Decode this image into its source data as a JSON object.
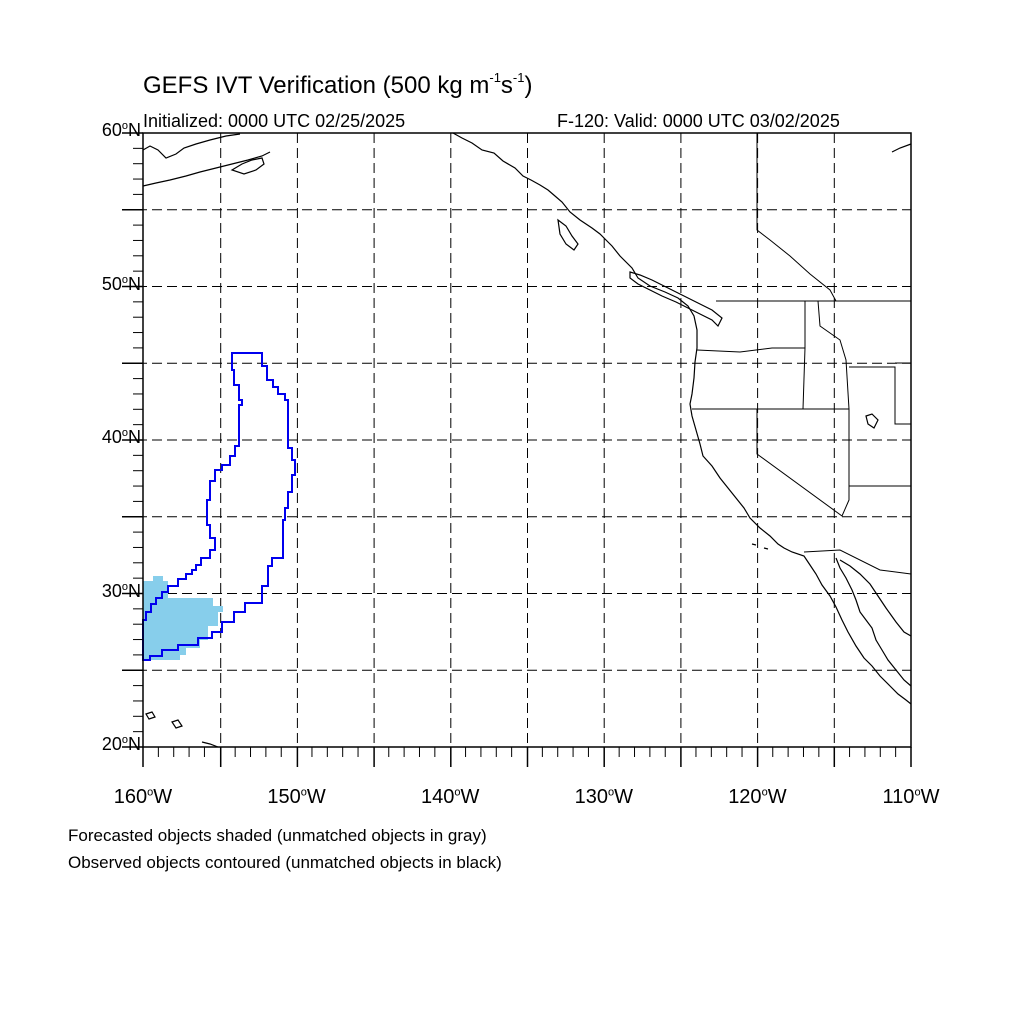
{
  "title": {
    "main": "GEFS IVT Verification (500 kg m",
    "sup1": "-1",
    "mid": "s",
    "sup2": "-1",
    "end": ")"
  },
  "initialized": "Initialized: 0000 UTC 02/25/2025",
  "valid": "F-120: Valid: 0000 UTC 03/02/2025",
  "map": {
    "lon_range": [
      -160,
      -110
    ],
    "lat_range": [
      20,
      60
    ],
    "lat_labels": [
      {
        "value": 60,
        "num": "60",
        "hemi": "N"
      },
      {
        "value": 50,
        "num": "50",
        "hemi": "N"
      },
      {
        "value": 40,
        "num": "40",
        "hemi": "N"
      },
      {
        "value": 30,
        "num": "30",
        "hemi": "N"
      },
      {
        "value": 20,
        "num": "20",
        "hemi": "N"
      }
    ],
    "lon_labels": [
      {
        "value": -160,
        "num": "160",
        "hemi": "W"
      },
      {
        "value": -150,
        "num": "150",
        "hemi": "W"
      },
      {
        "value": -140,
        "num": "140",
        "hemi": "W"
      },
      {
        "value": -130,
        "num": "130",
        "hemi": "W"
      },
      {
        "value": -120,
        "num": "120",
        "hemi": "W"
      },
      {
        "value": -110,
        "num": "110",
        "hemi": "W"
      }
    ],
    "gridlines": "dashed every 5 degrees",
    "forecast_fill_color": "#87CEEB",
    "observed_contour_color": "#0000EE"
  },
  "notes": {
    "line1": "Forecasted objects shaded (unmatched objects in gray)",
    "line2": "Observed objects contoured (unmatched objects in black)"
  }
}
